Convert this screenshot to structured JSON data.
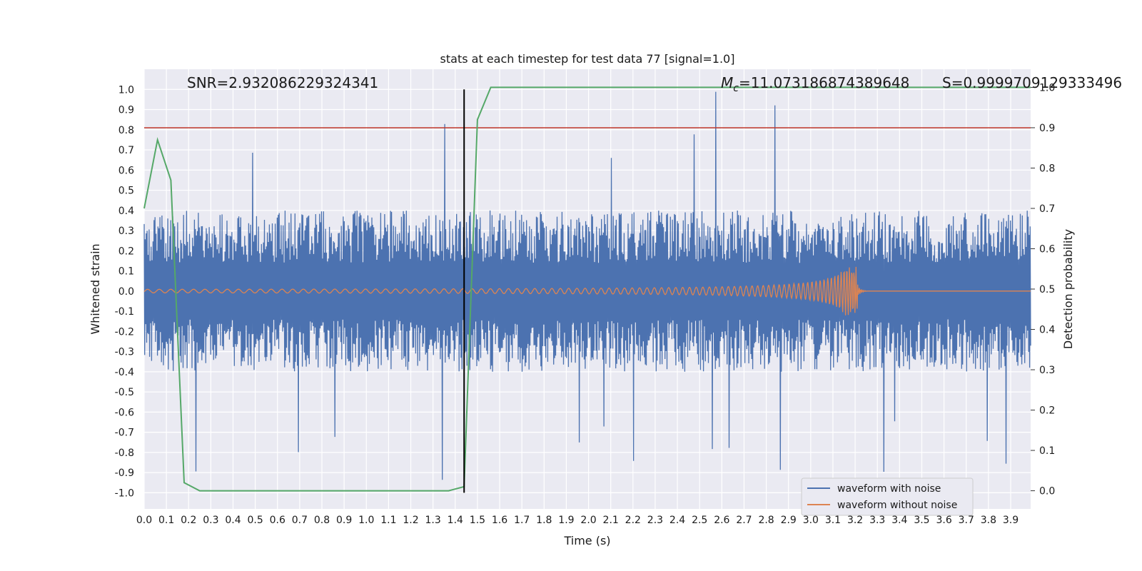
{
  "chart_data": {
    "type": "line",
    "title": "stats at each timestep for test data 77 [signal=1.0]",
    "xlabel": "Time (s)",
    "ylabel_left": "Whitened strain",
    "ylabel_right": "Detection probability",
    "xlim": [
      0.0,
      3.99
    ],
    "ylim_left": [
      -1.08,
      1.1
    ],
    "ylim_right": [
      -0.045,
      1.045
    ],
    "grid": true,
    "legend_position": "lower-right",
    "annotations": {
      "snr": "SNR=2.932086229324341",
      "mc_symbol": "M",
      "mc_sub": "c",
      "mc_value": "=11.073186874389648",
      "s_text": "S=0.9999709129333496"
    },
    "threshold_line": {
      "axis": "right",
      "value": 0.9,
      "color": "#c0392b"
    },
    "detection_time_line": {
      "x": 1.44,
      "y_from": -1.0,
      "y_to": 1.0,
      "color": "#000000"
    },
    "series": [
      {
        "name": "waveform with noise",
        "axis": "left",
        "color": "#4c72b0",
        "noise_envelope_approx": 0.4,
        "peak_max": 1.0,
        "peak_min": -0.98
      },
      {
        "name": "waveform without noise",
        "axis": "left",
        "color": "#dd8452",
        "merger_time": 3.21,
        "peak_amplitude": 0.12,
        "early_amplitude": 0.005
      },
      {
        "axis": "right",
        "color": "#55a868",
        "x": [
          0.0,
          0.06,
          0.12,
          0.18,
          0.25,
          1.37,
          1.44,
          1.5,
          1.56,
          3.99
        ],
        "y": [
          0.7,
          0.87,
          0.77,
          0.02,
          0.0,
          0.0,
          0.01,
          0.92,
          1.0,
          1.0
        ]
      }
    ],
    "x_ticks": [
      "0.0",
      "0.1",
      "0.2",
      "0.3",
      "0.4",
      "0.5",
      "0.6",
      "0.7",
      "0.8",
      "0.9",
      "1.0",
      "1.1",
      "1.2",
      "1.3",
      "1.4",
      "1.5",
      "1.6",
      "1.7",
      "1.8",
      "1.9",
      "2.0",
      "2.1",
      "2.2",
      "2.3",
      "2.4",
      "2.5",
      "2.6",
      "2.7",
      "2.8",
      "2.9",
      "3.0",
      "3.1",
      "3.2",
      "3.3",
      "3.4",
      "3.5",
      "3.6",
      "3.7",
      "3.8",
      "3.9"
    ],
    "y_ticks_left": [
      "-1.0",
      "-0.9",
      "-0.8",
      "-0.7",
      "-0.6",
      "-0.5",
      "-0.4",
      "-0.3",
      "-0.2",
      "-0.1",
      "0.0",
      "0.1",
      "0.2",
      "0.3",
      "0.4",
      "0.5",
      "0.6",
      "0.7",
      "0.8",
      "0.9",
      "1.0"
    ],
    "y_ticks_right": [
      "0.0",
      "0.1",
      "0.2",
      "0.3",
      "0.4",
      "0.5",
      "0.6",
      "0.7",
      "0.8",
      "0.9",
      "1.0"
    ],
    "colors": {
      "axes_bg": "#eaeaf2",
      "grid": "#ffffff"
    }
  }
}
